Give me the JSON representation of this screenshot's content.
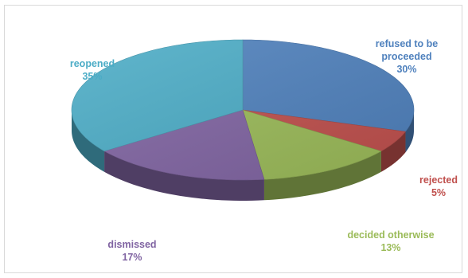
{
  "chart_data": {
    "type": "pie",
    "style": "3d-exploded-none",
    "slices": [
      {
        "label": "refused to be proceeded",
        "label_lines": [
          "refused to be",
          "proceeded"
        ],
        "percent_text": "30%",
        "value": 30,
        "color": "#4f81bd"
      },
      {
        "label": "rejected",
        "label_lines": [
          "rejected"
        ],
        "percent_text": "5%",
        "value": 5,
        "color": "#c0504d"
      },
      {
        "label": "decided otherwise",
        "label_lines": [
          "decided otherwise"
        ],
        "percent_text": "13%",
        "value": 13,
        "color": "#9bbb59"
      },
      {
        "label": "dismissed",
        "label_lines": [
          "dismissed"
        ],
        "percent_text": "17%",
        "value": 17,
        "color": "#8064a2"
      },
      {
        "label": "reopened",
        "label_lines": [
          "reopened"
        ],
        "percent_text": "35%",
        "value": 35,
        "color": "#4bacc6"
      }
    ],
    "title": "",
    "legend": "none"
  }
}
